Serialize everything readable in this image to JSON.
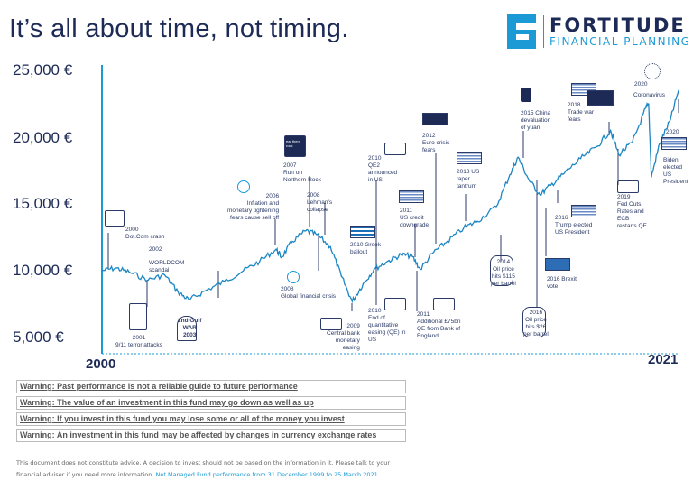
{
  "title": "It’s all about time, not timing.",
  "logo": {
    "name": "FORTITUDE",
    "sub": "FINANCIAL PLANNING"
  },
  "chart_data": {
    "type": "line",
    "ylim": [
      5000,
      25000
    ],
    "ytick_labels": [
      "25,000 €",
      "20,000 €",
      "15,000 €",
      "10,000 €",
      "5,000 €"
    ],
    "xtick_labels": [
      "2000",
      "2021"
    ],
    "x": [
      2000.0,
      2000.5,
      2001.0,
      2001.7,
      2002.3,
      2002.8,
      2003.2,
      2003.8,
      2004.5,
      2005.2,
      2005.8,
      2006.4,
      2006.6,
      2007.0,
      2007.5,
      2007.9,
      2008.4,
      2008.8,
      2009.2,
      2009.6,
      2010.0,
      2010.5,
      2011.0,
      2011.4,
      2011.7,
      2012.2,
      2012.7,
      2013.3,
      2013.8,
      2014.5,
      2015.0,
      2015.3,
      2015.7,
      2016.1,
      2016.5,
      2017.0,
      2017.6,
      2018.2,
      2018.7,
      2019.0,
      2019.5,
      2020.0,
      2020.1,
      2020.2,
      2020.5,
      2020.9,
      2021.2
    ],
    "values": [
      10000,
      10200,
      9900,
      9300,
      9700,
      8400,
      7800,
      8500,
      9200,
      10000,
      10700,
      11600,
      11000,
      12200,
      13000,
      12700,
      11800,
      9600,
      7700,
      9000,
      10100,
      10700,
      11200,
      11100,
      10100,
      11400,
      12200,
      13200,
      13700,
      14800,
      17200,
      18500,
      16800,
      15700,
      16400,
      17300,
      18400,
      19300,
      20500,
      18700,
      19600,
      22200,
      22500,
      17000,
      19500,
      21300,
      23500
    ],
    "annotations": [
      "2000\nDot.Com crash",
      "2002",
      "WORLDCOM\nscandal",
      "2001\n9/11 terror attacks",
      "2nd Gulf\nWAR\n2003",
      "2006\nInflation and\nmonetary tightening\nfears cause sell off",
      "ear thern\nrock",
      "2007\nRun on\nNorthern Rock",
      "2008\nLehman’s\ncollapse",
      "2008\nGlobal financial crisis",
      "2009\nCentral bank\nmonetary\neasing",
      "2010 Greek\nbailout",
      "2010\nQE2\nannounced\nin US",
      "2010\nEnd of\nquantitative\neasing (QE) in\nUS",
      "2011\nUS credit\ndowngrade",
      "2011\nAdditional £75bn\nQE from Bank of\nEngland",
      "2012\nEuro crisis\nfears",
      "2013 US\ntaper\ntantrum",
      "2014\nOil price\nhits $115\nper barrel",
      "2015 China\ndevaluation\nof yuan",
      "2016\nOil price\nhits $26\nper barrel",
      "2016\nTrump elected\nUS President",
      "2016 Brexit\nvote",
      "2018\nTrade war\nfears",
      "2019\nFed Cuts\nRates and\nECB\nrestarts QE",
      "2020",
      "Coronavirus",
      "2020",
      "Biden\nelected\nUS\nPresident"
    ],
    "colors": {
      "line": "#1b86c4",
      "axis": "#1b9ad6",
      "text": "#2b3a67"
    }
  },
  "warnings": [
    "Warning: Past performance is not a reliable guide to future performance",
    "Warning: The value of an investment in this fund may go down as well as up",
    "Warning: If you invest in this fund you may lose some or all of the money you invest",
    "Warning: An investment in this fund may be affected by changes in currency exchange rates"
  ],
  "footer": {
    "text": "This document does not constitute advice. A decision to invest should not be based on the information in it. Please talk to your financial adviser if you need more information.",
    "link": "Net Managed Fund performance from 31 December 1999 to 25 March 2021"
  }
}
